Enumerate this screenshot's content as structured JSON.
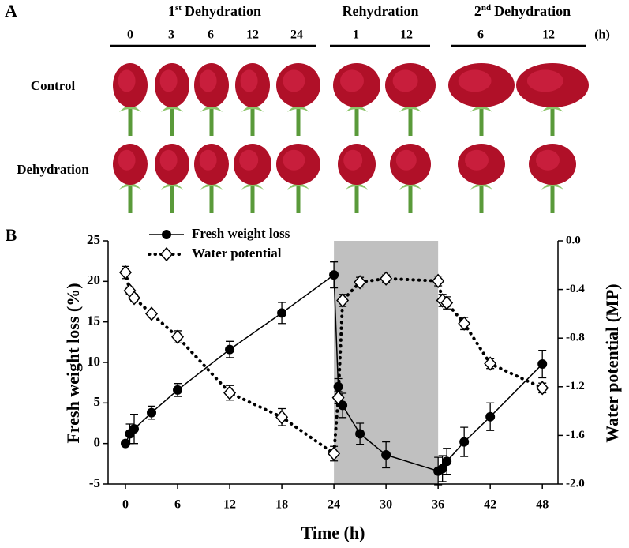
{
  "panel_a": {
    "label": "A",
    "groups": [
      {
        "num": "1",
        "sup": "st",
        "label": "Dehydration",
        "times": [
          "0",
          "3",
          "6",
          "12",
          "24"
        ]
      },
      {
        "label": "Rehydration",
        "times": [
          "1",
          "12"
        ]
      },
      {
        "num": "2",
        "sup": "nd",
        "label": "Dehydration",
        "times": [
          "6",
          "12"
        ]
      }
    ],
    "unit": "(h)",
    "rows": [
      "Control",
      "Dehydration"
    ]
  },
  "chart_data": {
    "type": "line",
    "panel_label": "B",
    "x_label": "Time (h)",
    "y_label": "Fresh weight loss (%)",
    "y2_label": "Water potential (MP)",
    "xlim": [
      -2,
      49.8
    ],
    "xticks": [
      0,
      6,
      12,
      18,
      24,
      30,
      36,
      42,
      48
    ],
    "ylim": [
      -5,
      25
    ],
    "yticks": [
      -5,
      0,
      5,
      10,
      15,
      20,
      25
    ],
    "y2lim": [
      -2,
      0
    ],
    "y2ticks": [
      {
        "value": 0,
        "label": "0.0"
      },
      -0.4,
      -0.8,
      -1.2,
      -1.6,
      {
        "value": -2,
        "label": "-2.0"
      }
    ],
    "shaded": [
      24,
      36
    ],
    "shade_color": "#c0c0c0",
    "legend": "top-left",
    "series": [
      {
        "name": "Fresh weight loss",
        "color": "#000000",
        "marker": "circle",
        "line_style": "solid",
        "x": [
          0,
          0.5,
          1,
          3,
          6,
          12,
          18,
          24,
          24.5,
          25,
          27,
          30,
          36,
          36.5,
          37,
          39,
          42,
          48
        ],
        "values": [
          0,
          1.2,
          1.8,
          3.8,
          6.6,
          11.6,
          16.1,
          20.8,
          7,
          4.7,
          1.2,
          -1.4,
          -3.4,
          -3.1,
          -2.2,
          0.2,
          3.3,
          9.8
        ],
        "errors": [
          0.3,
          1.2,
          1.8,
          0.8,
          0.8,
          1.0,
          1.3,
          1.6,
          1.0,
          1.5,
          1.3,
          1.6,
          1.7,
          1.6,
          1.6,
          1.8,
          1.7,
          1.7
        ]
      },
      {
        "name": "Water potential",
        "color": "#000000",
        "marker": "diamond",
        "line_style": "dotted",
        "axis": "y2",
        "x": [
          0,
          0.5,
          1,
          3,
          6,
          12,
          18,
          24,
          24.5,
          25,
          27,
          30,
          36,
          36.5,
          37,
          39,
          42,
          48
        ],
        "values": [
          -0.26,
          -0.41,
          -0.47,
          -0.6,
          -0.79,
          -1.25,
          -1.45,
          -1.75,
          -1.29,
          -0.49,
          -0.34,
          -0.31,
          -0.33,
          -0.49,
          -0.51,
          -0.68,
          -1.01,
          -1.21
        ],
        "errors": [
          0.05,
          0.03,
          0.03,
          0.03,
          0.05,
          0.06,
          0.07,
          0.06,
          0.05,
          0.05,
          0.04,
          0.03,
          0.04,
          0.05,
          0.05,
          0.05,
          0.04,
          0.04
        ]
      }
    ]
  }
}
